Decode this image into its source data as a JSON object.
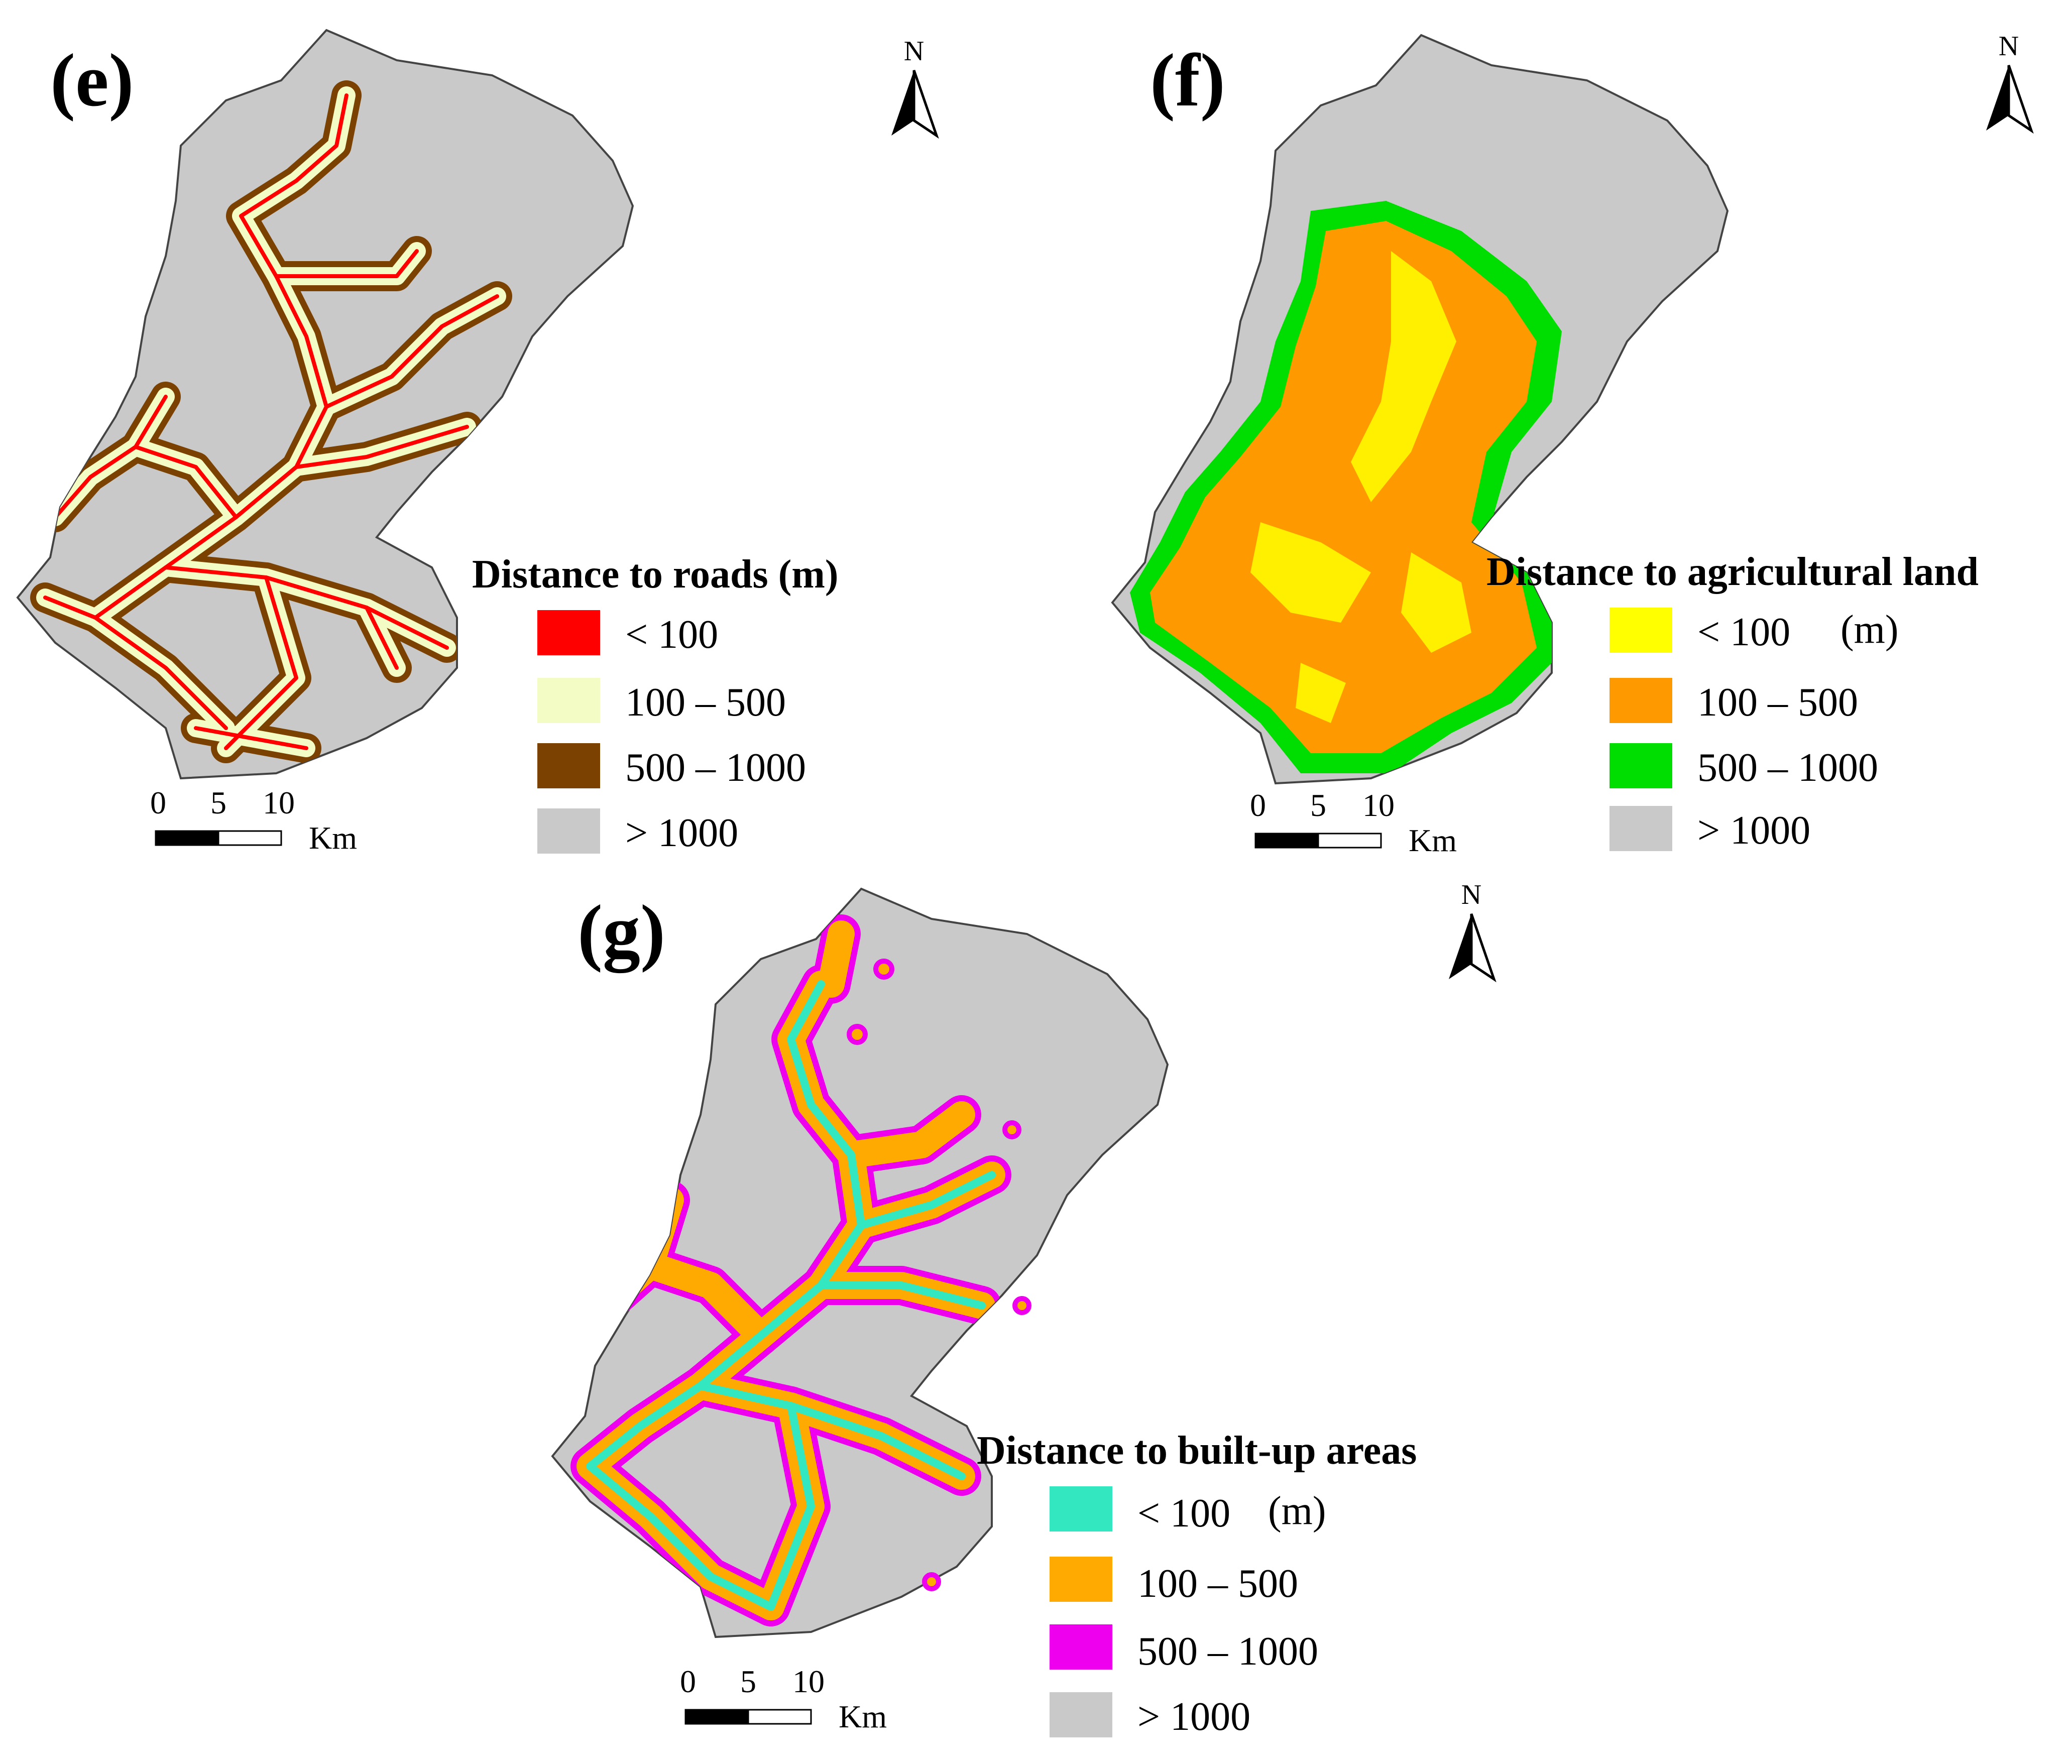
{
  "panels": [
    {
      "id": "e",
      "label": "(e)",
      "north": "N",
      "legend_title": "Distance to roads (m)",
      "classes": [
        {
          "label": "< 100",
          "color": "#ff0000"
        },
        {
          "label": "100 – 500",
          "color": "#f3fcc4"
        },
        {
          "label": "500 – 1000",
          "color": "#7a4100"
        },
        {
          "label": "> 1000",
          "color": "#c9c9c9"
        }
      ],
      "scale": {
        "ticks": [
          "0",
          "5",
          "10"
        ],
        "unit": "Km"
      }
    },
    {
      "id": "f",
      "label": "(f)",
      "north": "N",
      "legend_title": "Distance to agricultural land",
      "unit_note": "(m)",
      "classes": [
        {
          "label": "< 100",
          "color": "#ffff00"
        },
        {
          "label": "100 – 500",
          "color": "#ff9900"
        },
        {
          "label": "500 – 1000",
          "color": "#00dd00"
        },
        {
          "label": "> 1000",
          "color": "#c9c9c9"
        }
      ],
      "scale": {
        "ticks": [
          "0",
          "5",
          "10"
        ],
        "unit": "Km"
      }
    },
    {
      "id": "g",
      "label": "(g)",
      "north": "N",
      "legend_title": "Distance to built-up areas",
      "unit_note": "(m)",
      "classes": [
        {
          "label": "< 100",
          "color": "#33e8c0"
        },
        {
          "label": "100 – 500",
          "color": "#ffaa00"
        },
        {
          "label": "500 – 1000",
          "color": "#ee00ee"
        },
        {
          "label": "> 1000",
          "color": "#c9c9c9"
        }
      ],
      "scale": {
        "ticks": [
          "0",
          "5",
          "10"
        ],
        "unit": "Km"
      }
    }
  ]
}
